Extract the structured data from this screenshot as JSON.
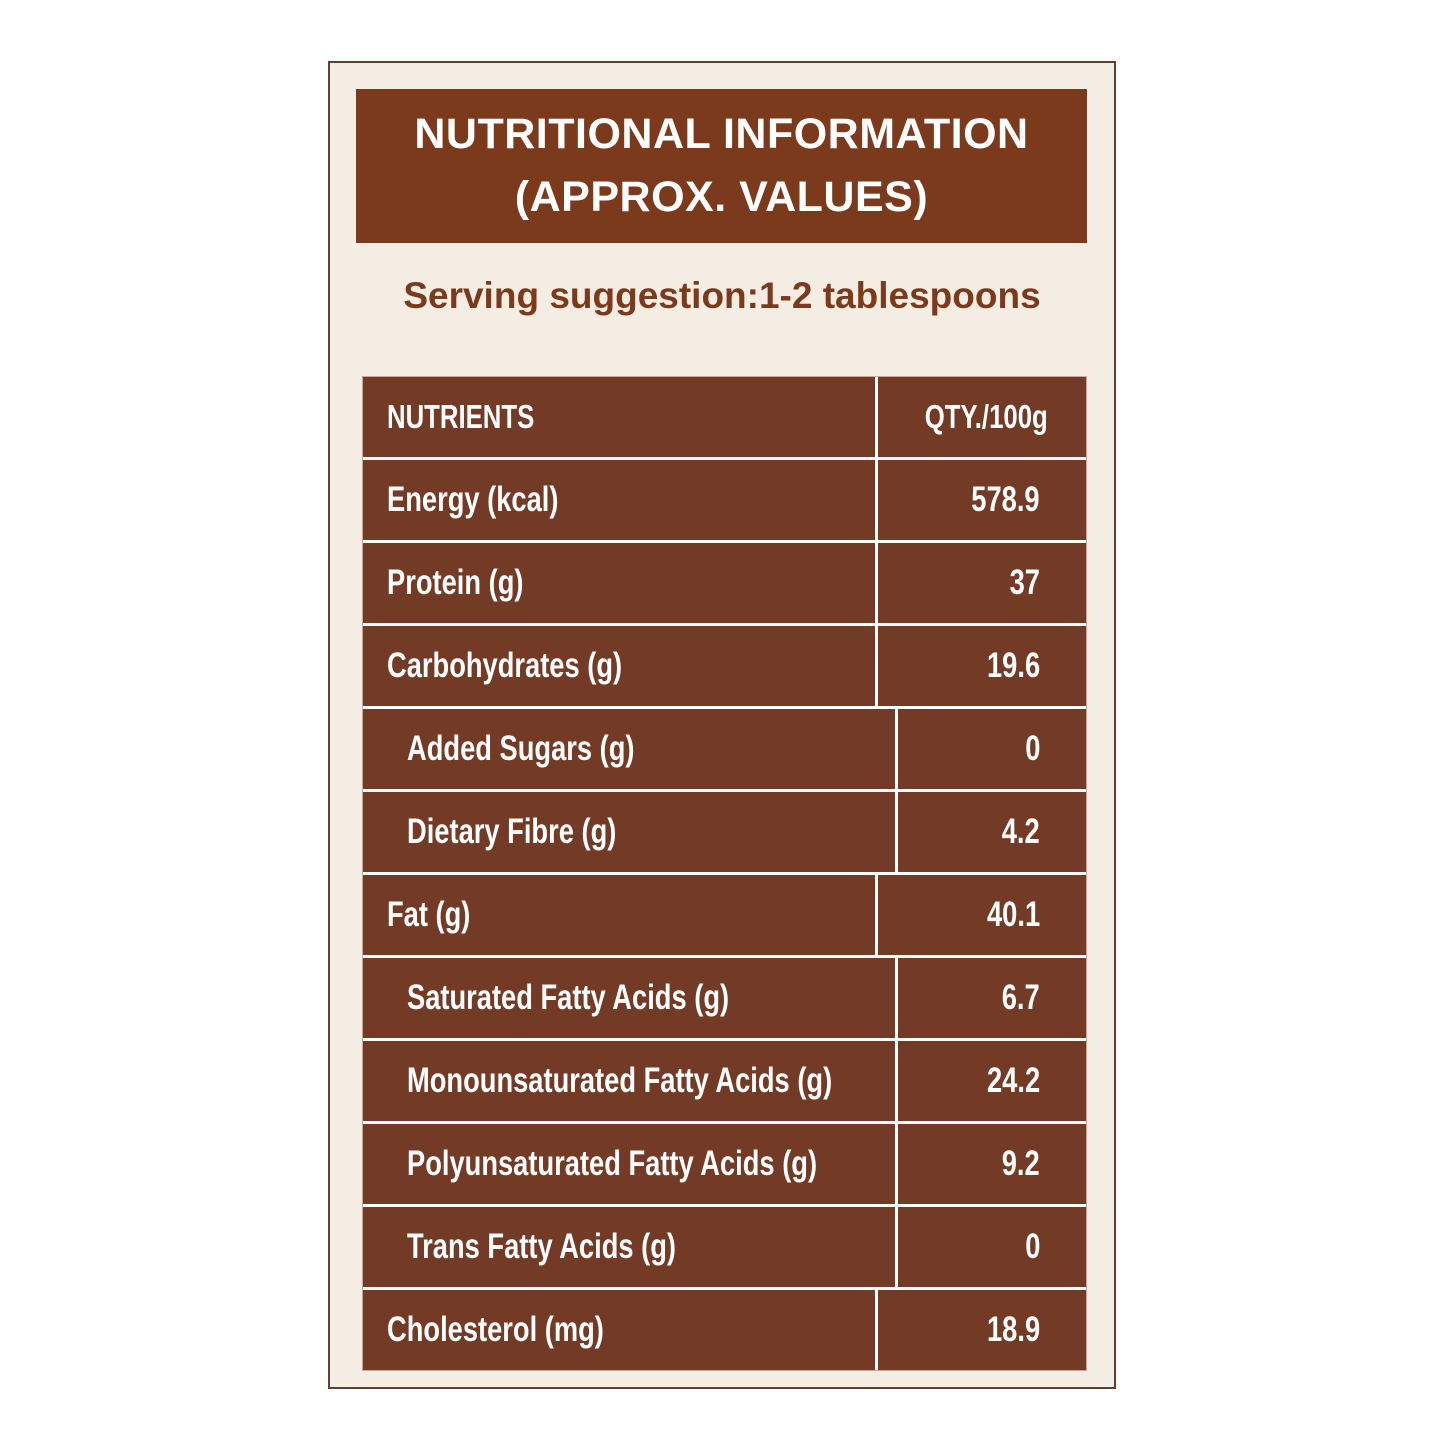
{
  "title": {
    "line1": "NUTRITIONAL INFORMATION",
    "line2": "(APPROX. VALUES)"
  },
  "serving": "Serving suggestion:1-2 tablespoons",
  "colors": {
    "header_bg": "#7b3a1c",
    "table_bg": "#733a26",
    "card_bg": "#f4ede4",
    "accent_text": "#7b3a1c"
  },
  "table": {
    "headers": [
      "NUTRIENTS",
      "QTY./100g"
    ],
    "rows": [
      {
        "name": "Energy (kcal)",
        "value": "578.9",
        "indent": false
      },
      {
        "name": "Protein (g)",
        "value": "37",
        "indent": false
      },
      {
        "name": "Carbohydrates (g)",
        "value": "19.6",
        "indent": false
      },
      {
        "name": "Added Sugars (g)",
        "value": "0",
        "indent": true
      },
      {
        "name": "Dietary Fibre (g)",
        "value": "4.2",
        "indent": true
      },
      {
        "name": "Fat (g)",
        "value": "40.1",
        "indent": false
      },
      {
        "name": "Saturated Fatty Acids (g)",
        "value": "6.7",
        "indent": true
      },
      {
        "name": "Monounsaturated Fatty Acids (g)",
        "value": "24.2",
        "indent": true
      },
      {
        "name": "Polyunsaturated Fatty Acids (g)",
        "value": "9.2",
        "indent": true
      },
      {
        "name": "Trans Fatty Acids (g)",
        "value": "0",
        "indent": true
      },
      {
        "name": "Cholesterol (mg)",
        "value": "18.9",
        "indent": false
      }
    ]
  }
}
